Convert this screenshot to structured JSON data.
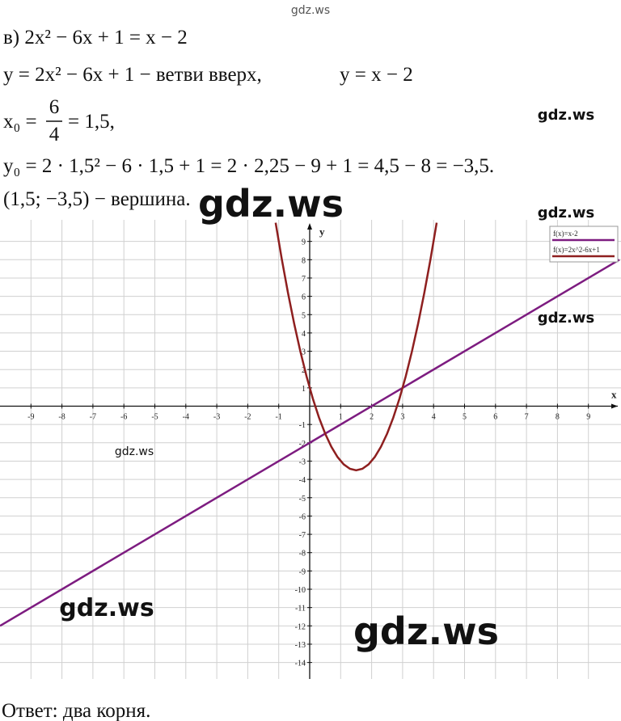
{
  "watermark_top": "gdz.ws",
  "lines": {
    "l1": "в) 2x² − 6x + 1 = x − 2",
    "l2a": "y = 2x² − 6x + 1 − ветви вверх,",
    "l2b": "y = x − 2",
    "l3": {
      "lhs": "x₀ =",
      "num": "6",
      "den": "4",
      "rhs": "= 1,5,"
    },
    "l4": "y₀ = 2 · 1,5² − 6 · 1,5 + 1 = 2 · 2,25 − 9 + 1 = 4,5 − 8 = −3,5.",
    "l5": "(1,5; −3,5) − вершина."
  },
  "graph": {
    "type": "line",
    "x_label": "x",
    "y_label": "y",
    "xlim": [
      -10,
      10
    ],
    "ylim": [
      -14.9,
      10
    ],
    "xticks": [
      -9,
      -8,
      -7,
      -6,
      -5,
      -4,
      -3,
      -2,
      -1,
      1,
      2,
      3,
      4,
      5,
      6,
      7,
      8,
      9
    ],
    "yticks": [
      -14,
      -13,
      -12,
      -11,
      -10,
      -9,
      -8,
      -7,
      -6,
      -5,
      -4,
      -3,
      -2,
      -1,
      1,
      2,
      3,
      4,
      5,
      6,
      7,
      8,
      9
    ],
    "grid": true,
    "legend": "top-right",
    "series": [
      {
        "name": "f(x)=x-2",
        "color": "#7d1c80",
        "x": [
          -10,
          10
        ],
        "y": [
          -12,
          8
        ]
      },
      {
        "name": "f(x)=2x^2-6x+1",
        "color": "#8e1f1f",
        "x": [
          -1.1,
          -0.9,
          -0.7,
          -0.5,
          -0.3,
          -0.1,
          0.1,
          0.3,
          0.5,
          0.7,
          0.9,
          1.1,
          1.3,
          1.5,
          1.7,
          1.9,
          2.1,
          2.3,
          2.5,
          2.7,
          2.9,
          3.1,
          3.3,
          3.5,
          3.7,
          3.9,
          4.1
        ],
        "y": [
          10.02,
          8.02,
          6.18,
          4.5,
          2.98,
          1.62,
          0.42,
          -0.62,
          -1.5,
          -2.22,
          -2.78,
          -3.18,
          -3.42,
          -3.5,
          -3.42,
          -3.18,
          -2.78,
          -2.22,
          -1.5,
          -0.62,
          0.42,
          1.62,
          2.98,
          4.5,
          6.18,
          8.02,
          10.02
        ]
      }
    ]
  },
  "answer": "Ответ: два корня.",
  "watermarks": [
    "gdz.ws",
    "gdz.ws",
    "gdz.ws",
    "gdz.ws",
    "gdz.ws",
    "gdz.ws",
    "gdz.ws"
  ]
}
